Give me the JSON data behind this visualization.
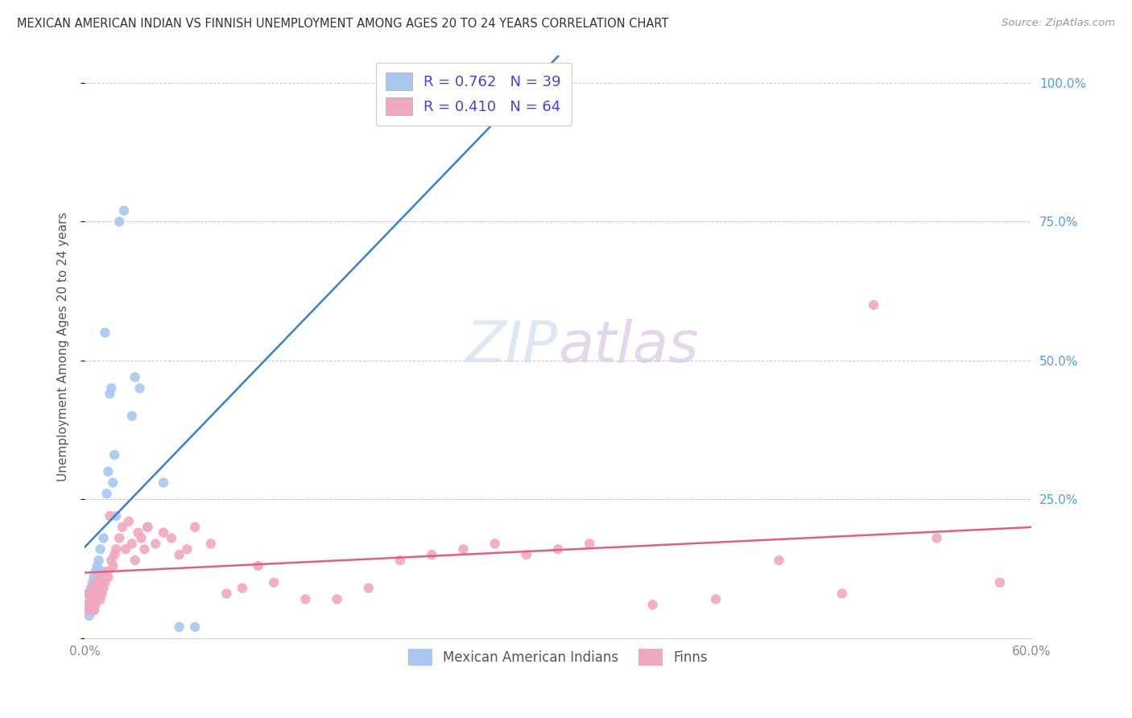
{
  "title": "MEXICAN AMERICAN INDIAN VS FINNISH UNEMPLOYMENT AMONG AGES 20 TO 24 YEARS CORRELATION CHART",
  "source": "Source: ZipAtlas.com",
  "ylabel": "Unemployment Among Ages 20 to 24 years",
  "xlim": [
    0.0,
    0.6
  ],
  "ylim": [
    0.0,
    1.05
  ],
  "xticks": [
    0.0,
    0.1,
    0.2,
    0.3,
    0.4,
    0.5,
    0.6
  ],
  "xtick_labels": [
    "0.0%",
    "",
    "",
    "",
    "",
    "",
    "60.0%"
  ],
  "yticks": [
    0.0,
    0.25,
    0.5,
    0.75,
    1.0
  ],
  "ytick_labels": [
    "",
    "25.0%",
    "50.0%",
    "75.0%",
    "100.0%"
  ],
  "background_color": "#ffffff",
  "grid_color": "#c8c8c8",
  "blue_color": "#a8c8f0",
  "pink_color": "#f0a8c0",
  "blue_line_color": "#3a80d0",
  "pink_line_color": "#e06080",
  "legend_text_color": "#4444cc",
  "R_mexican": 0.762,
  "N_mexican": 39,
  "R_finns": 0.41,
  "N_finns": 64,
  "watermark": "ZIPatlas",
  "mexican_x": [
    0.001,
    0.002,
    0.003,
    0.003,
    0.004,
    0.004,
    0.005,
    0.005,
    0.006,
    0.006,
    0.006,
    0.007,
    0.007,
    0.007,
    0.008,
    0.008,
    0.009,
    0.009,
    0.01,
    0.01,
    0.011,
    0.012,
    0.013,
    0.014,
    0.015,
    0.016,
    0.017,
    0.018,
    0.019,
    0.02,
    0.022,
    0.025,
    0.03,
    0.032,
    0.035,
    0.04,
    0.05,
    0.06,
    0.07
  ],
  "mexican_y": [
    0.05,
    0.08,
    0.04,
    0.06,
    0.07,
    0.09,
    0.06,
    0.1,
    0.05,
    0.08,
    0.11,
    0.07,
    0.09,
    0.12,
    0.08,
    0.13,
    0.1,
    0.14,
    0.09,
    0.16,
    0.12,
    0.18,
    0.55,
    0.26,
    0.3,
    0.44,
    0.45,
    0.28,
    0.33,
    0.22,
    0.75,
    0.77,
    0.4,
    0.47,
    0.45,
    0.2,
    0.28,
    0.02,
    0.02
  ],
  "finns_x": [
    0.001,
    0.002,
    0.003,
    0.004,
    0.005,
    0.005,
    0.006,
    0.006,
    0.007,
    0.007,
    0.008,
    0.008,
    0.009,
    0.009,
    0.01,
    0.01,
    0.011,
    0.012,
    0.013,
    0.014,
    0.015,
    0.016,
    0.017,
    0.018,
    0.019,
    0.02,
    0.022,
    0.024,
    0.026,
    0.028,
    0.03,
    0.032,
    0.034,
    0.036,
    0.038,
    0.04,
    0.045,
    0.05,
    0.055,
    0.06,
    0.065,
    0.07,
    0.08,
    0.09,
    0.1,
    0.11,
    0.12,
    0.14,
    0.16,
    0.18,
    0.2,
    0.22,
    0.24,
    0.26,
    0.28,
    0.3,
    0.32,
    0.36,
    0.4,
    0.44,
    0.48,
    0.5,
    0.54,
    0.58
  ],
  "finns_y": [
    0.06,
    0.08,
    0.05,
    0.07,
    0.06,
    0.09,
    0.05,
    0.08,
    0.06,
    0.1,
    0.07,
    0.09,
    0.08,
    0.11,
    0.07,
    0.1,
    0.08,
    0.09,
    0.1,
    0.12,
    0.11,
    0.22,
    0.14,
    0.13,
    0.15,
    0.16,
    0.18,
    0.2,
    0.16,
    0.21,
    0.17,
    0.14,
    0.19,
    0.18,
    0.16,
    0.2,
    0.17,
    0.19,
    0.18,
    0.15,
    0.16,
    0.2,
    0.17,
    0.08,
    0.09,
    0.13,
    0.1,
    0.07,
    0.07,
    0.09,
    0.14,
    0.15,
    0.16,
    0.17,
    0.15,
    0.16,
    0.17,
    0.06,
    0.07,
    0.14,
    0.08,
    0.6,
    0.18,
    0.1
  ]
}
